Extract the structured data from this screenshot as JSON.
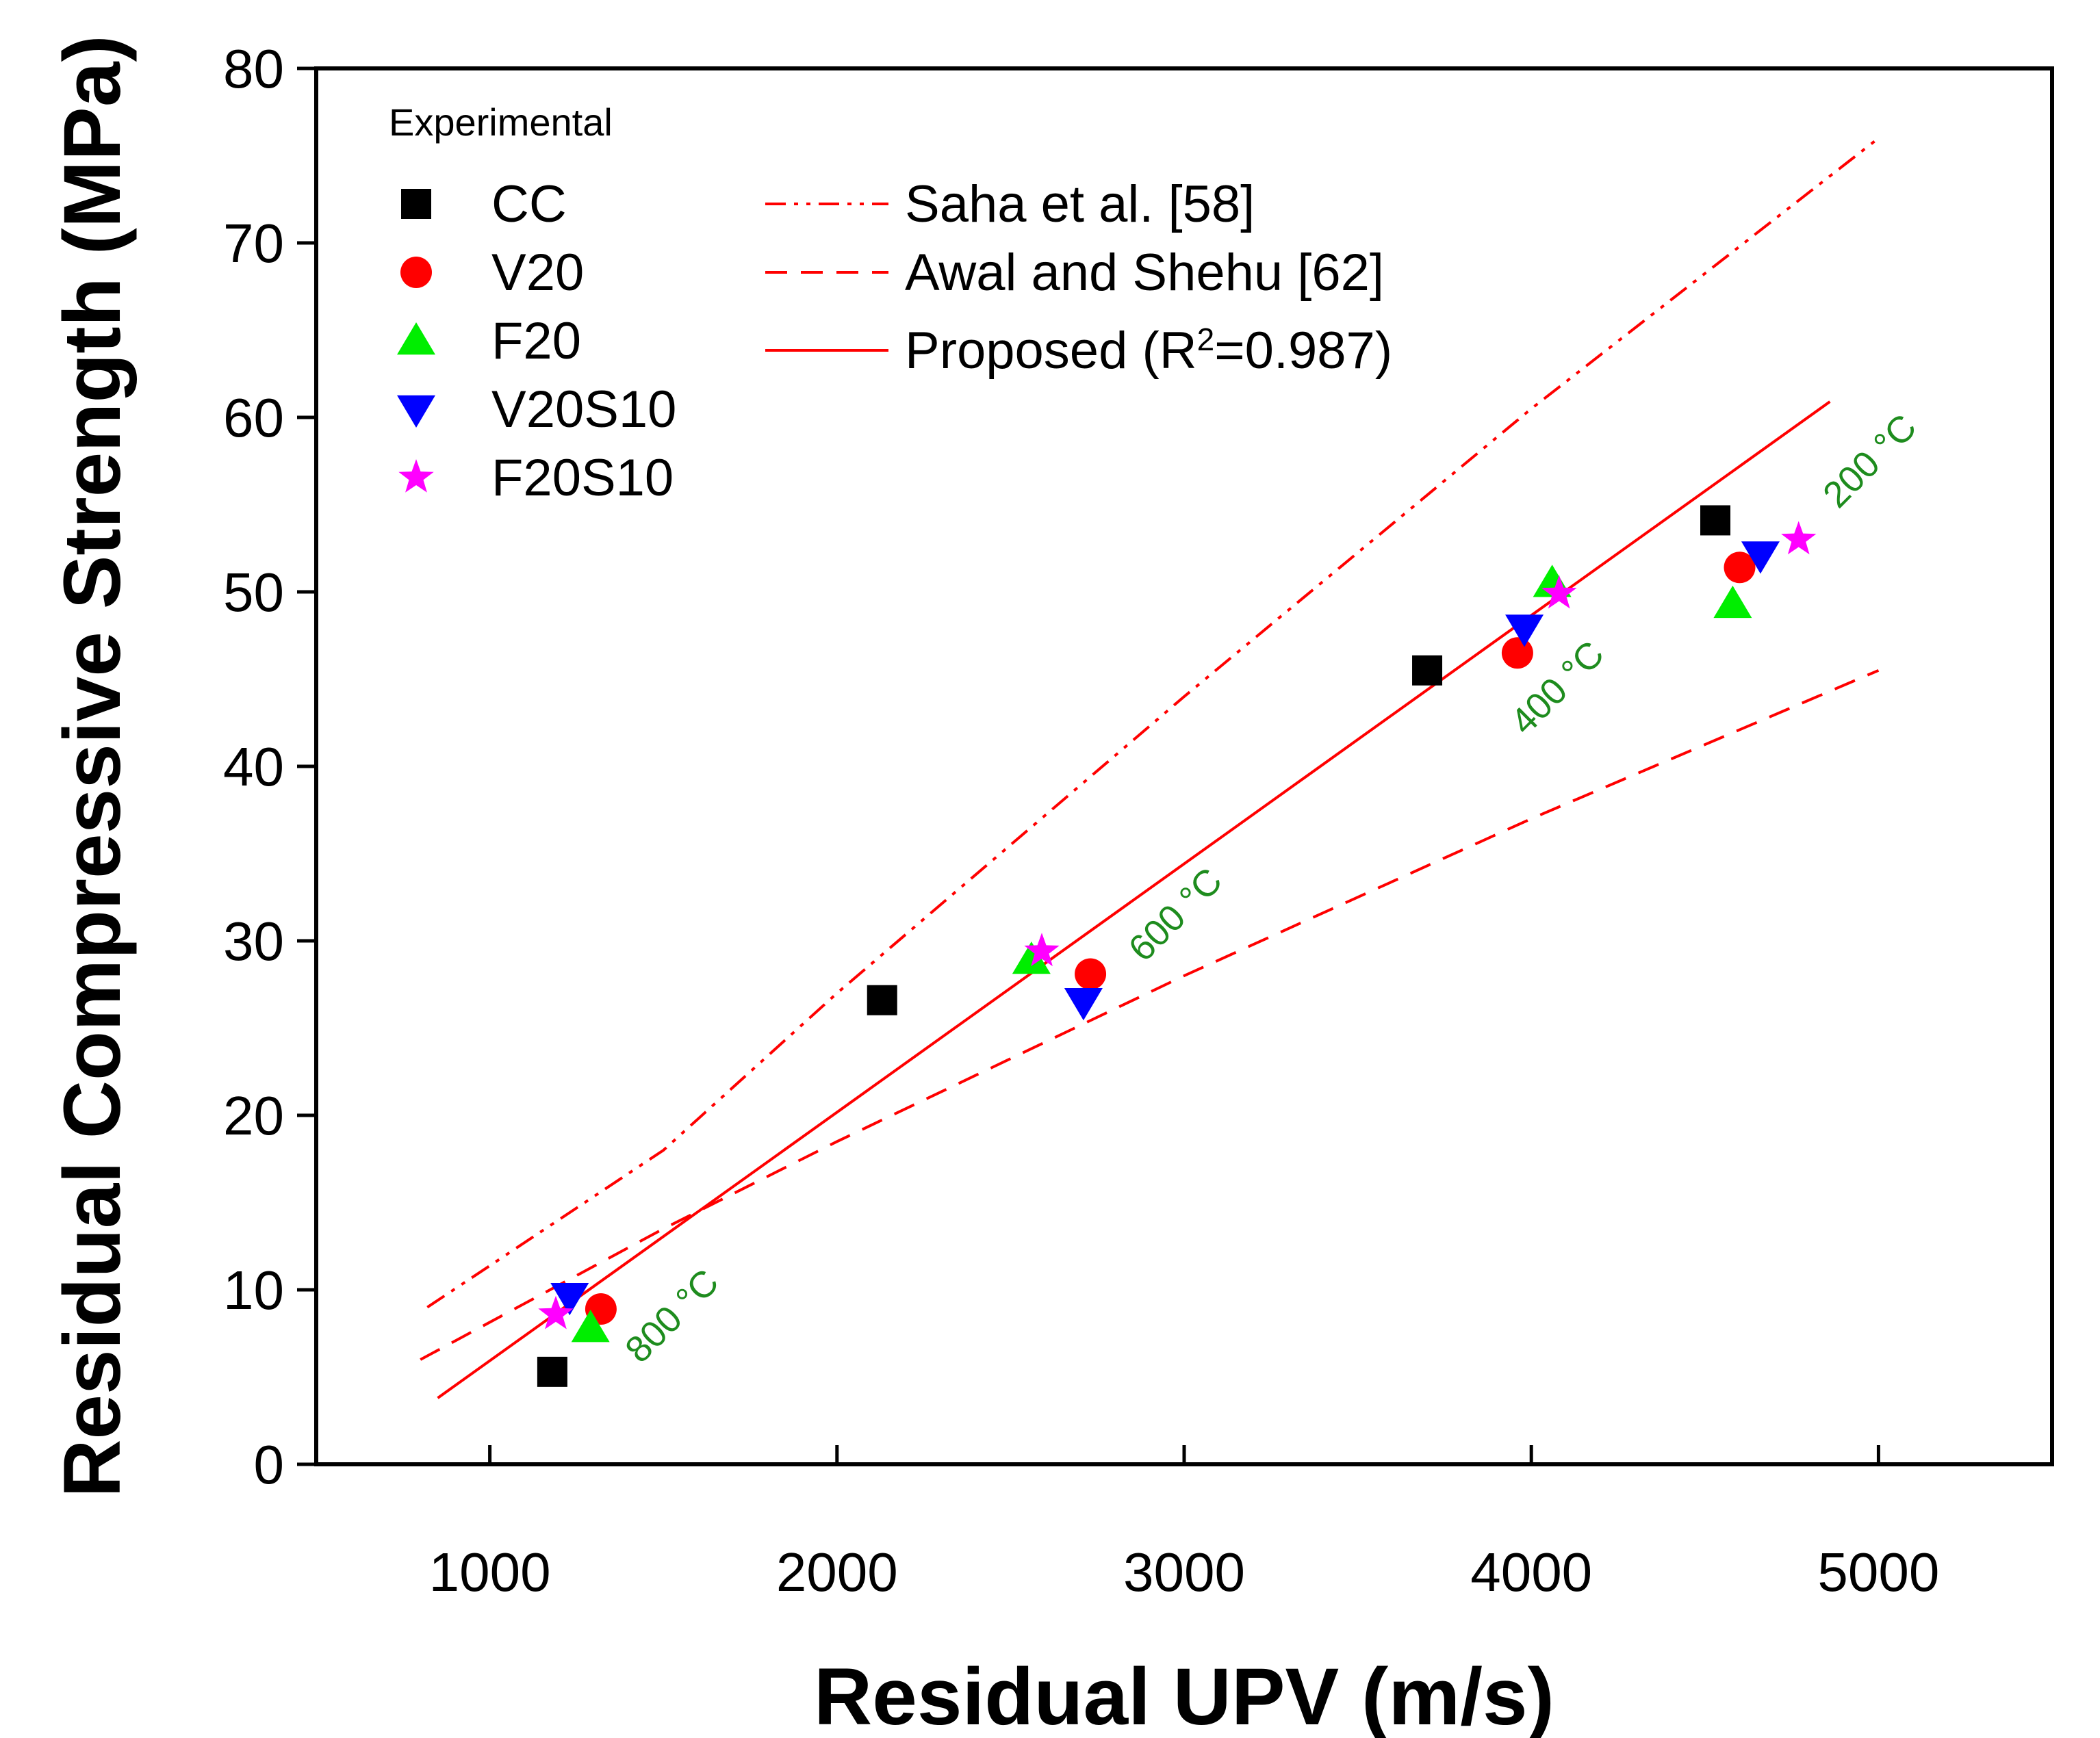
{
  "chart_data": {
    "type": "scatter",
    "title": "",
    "xlabel": "Residual UPV (m/s)",
    "ylabel": "Residual Compressive Strength (MPa)",
    "xlim": [
      500,
      5500
    ],
    "ylim": [
      0,
      80
    ],
    "xticks": [
      1000,
      2000,
      3000,
      4000,
      5000
    ],
    "yticks": [
      0,
      10,
      20,
      30,
      40,
      50,
      60,
      70,
      80
    ],
    "grid": false,
    "legend_position": "top-left",
    "legend_title": "Experimental",
    "series": [
      {
        "name": "CC",
        "marker": "square",
        "color": "#000000",
        "points": [
          [
            1180,
            5.3
          ],
          [
            2130,
            26.6
          ],
          [
            3700,
            45.5
          ],
          [
            4530,
            54.1
          ]
        ]
      },
      {
        "name": "V20",
        "marker": "circle",
        "color": "#ff0000",
        "points": [
          [
            1320,
            8.9
          ],
          [
            2730,
            28.1
          ],
          [
            3960,
            46.5
          ],
          [
            4600,
            51.4
          ]
        ]
      },
      {
        "name": "F20",
        "marker": "triangle-up",
        "color": "#00ee00",
        "points": [
          [
            1290,
            7.8
          ],
          [
            2560,
            28.9
          ],
          [
            4060,
            50.5
          ],
          [
            4580,
            49.3
          ]
        ]
      },
      {
        "name": "V20S10",
        "marker": "triangle-down",
        "color": "#0000ff",
        "points": [
          [
            1230,
            9.6
          ],
          [
            2710,
            26.5
          ],
          [
            3980,
            47.9
          ],
          [
            4660,
            52.1
          ]
        ]
      },
      {
        "name": "F20S10",
        "marker": "star",
        "color": "#ff00ff",
        "points": [
          [
            1190,
            8.6
          ],
          [
            2590,
            29.4
          ],
          [
            4080,
            49.9
          ],
          [
            4770,
            53.0
          ]
        ]
      }
    ],
    "lines": [
      {
        "name": "Saha et al. [58]",
        "style": "dash-dot-dot",
        "color": "#ff0000",
        "points": [
          [
            820,
            9.0
          ],
          [
            1500,
            18.0
          ],
          [
            2000,
            27.0
          ],
          [
            3000,
            44.0
          ],
          [
            4000,
            60.5
          ],
          [
            5000,
            76.0
          ]
        ]
      },
      {
        "name": "Awal and Shehu [62]",
        "style": "dashed",
        "color": "#ff0000",
        "points": [
          [
            800,
            6.0
          ],
          [
            1500,
            13.5
          ],
          [
            2000,
            18.5
          ],
          [
            3000,
            28.0
          ],
          [
            4000,
            37.0
          ],
          [
            5000,
            45.5
          ]
        ]
      },
      {
        "name": "Proposed (R",
        "name_sup": "2",
        "name_suffix": "=0.987)",
        "style": "solid",
        "color": "#ff0000",
        "points": [
          [
            850,
            3.8
          ],
          [
            4860,
            60.9
          ]
        ]
      }
    ],
    "annotations": [
      {
        "text": "800 °C",
        "x": 1550,
        "y": 8.0
      },
      {
        "text": "600 °C",
        "x": 3000,
        "y": 31.0
      },
      {
        "text": "400 °C",
        "x": 4100,
        "y": 44.0
      },
      {
        "text": "200 °C",
        "x": 5000,
        "y": 57.0
      }
    ]
  }
}
